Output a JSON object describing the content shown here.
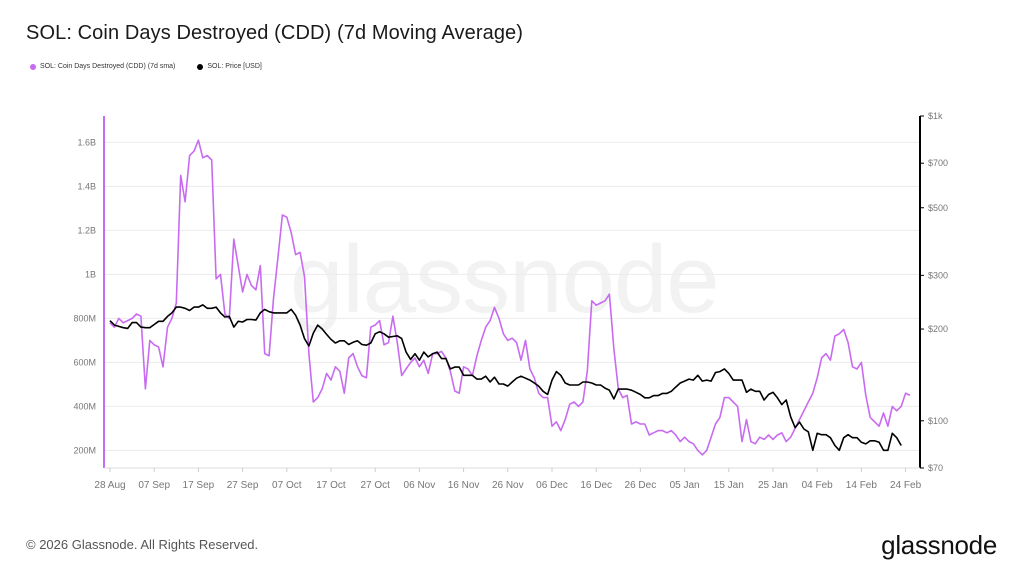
{
  "header": {
    "title": "SOL: Coin Days Destroyed (CDD) (7d Moving Average)"
  },
  "footer": {
    "copyright": "© 2026 Glassnode. All Rights Reserved.",
    "brand": "glassnode",
    "watermark": "glassnode"
  },
  "colors": {
    "cdd": "#c86bf0",
    "price": "#000000",
    "grid": "#ececec",
    "axis_text": "#777777"
  },
  "chart_data": {
    "type": "line",
    "x_tick_labels": [
      "28 Aug",
      "07 Sep",
      "17 Sep",
      "27 Sep",
      "07 Oct",
      "17 Oct",
      "27 Oct",
      "06 Nov",
      "16 Nov",
      "26 Nov",
      "06 Dec",
      "16 Dec",
      "26 Dec",
      "05 Jan",
      "15 Jan",
      "25 Jan",
      "04 Feb",
      "14 Feb",
      "24 Feb"
    ],
    "y_left": {
      "ticks": [
        200,
        400,
        600,
        800,
        1000,
        1200,
        1400,
        1600
      ],
      "tick_labels": [
        "200M",
        "400M",
        "600M",
        "800M",
        "1B",
        "1.2B",
        "1.4B",
        "1.6B"
      ],
      "range": [
        120,
        1720
      ]
    },
    "y_right": {
      "scale": "log",
      "ticks": [
        70,
        100,
        200,
        300,
        500,
        700,
        1000
      ],
      "tick_labels": [
        "$70",
        "$100",
        "$200",
        "$300",
        "$500",
        "$700",
        "$1k"
      ],
      "range": [
        70,
        1000
      ]
    },
    "legend": [
      {
        "name": "SOL: Coin Days Destroyed (CDD) (7d sma)",
        "color": "#c86bf0"
      },
      {
        "name": "SOL: Price [USD]",
        "color": "#000000"
      }
    ],
    "series": [
      {
        "name": "SOL: Coin Days Destroyed (CDD) (7d sma)",
        "axis": "left",
        "x_step_days": 1,
        "values": [
          780,
          760,
          800,
          780,
          790,
          800,
          820,
          810,
          480,
          700,
          680,
          670,
          580,
          760,
          800,
          870,
          1450,
          1330,
          1540,
          1560,
          1610,
          1530,
          1540,
          1520,
          980,
          1000,
          820,
          800,
          1160,
          1040,
          920,
          1000,
          950,
          930,
          1040,
          640,
          630,
          890,
          1080,
          1270,
          1260,
          1190,
          1090,
          1100,
          990,
          640,
          420,
          440,
          480,
          550,
          520,
          580,
          560,
          460,
          620,
          640,
          580,
          540,
          530,
          760,
          770,
          790,
          680,
          690,
          810,
          690,
          540,
          570,
          600,
          620,
          580,
          610,
          550,
          640,
          640,
          650,
          620,
          560,
          470,
          460,
          580,
          570,
          540,
          630,
          700,
          760,
          790,
          850,
          800,
          730,
          700,
          710,
          690,
          610,
          700,
          570,
          530,
          460,
          440,
          440,
          310,
          330,
          290,
          340,
          410,
          420,
          400,
          420,
          560,
          880,
          860,
          870,
          880,
          910,
          660,
          480,
          440,
          450,
          320,
          330,
          320,
          320,
          270,
          280,
          290,
          290,
          280,
          290,
          270,
          240,
          260,
          240,
          230,
          200,
          180,
          200,
          260,
          320,
          350,
          440,
          440,
          420,
          400,
          240,
          340,
          240,
          230,
          260,
          250,
          270,
          250,
          270,
          280,
          240,
          260,
          300,
          340,
          380,
          420,
          460,
          530,
          620,
          640,
          610,
          720,
          730,
          750,
          690,
          580,
          570,
          600,
          450,
          350,
          330,
          310,
          370,
          310,
          400,
          380,
          400,
          460,
          450
        ]
      },
      {
        "name": "SOL: Price [USD]",
        "axis": "right",
        "x_step_days": 1,
        "values": [
          213,
          206,
          204,
          202,
          201,
          210,
          210,
          203,
          202,
          202,
          207,
          212,
          212,
          220,
          226,
          236,
          236,
          234,
          230,
          236,
          236,
          240,
          234,
          234,
          236,
          226,
          219,
          220,
          203,
          212,
          211,
          215,
          215,
          214,
          226,
          232,
          228,
          226,
          226,
          226,
          226,
          232,
          222,
          206,
          186,
          176,
          194,
          206,
          200,
          192,
          185,
          180,
          183,
          183,
          178,
          181,
          183,
          178,
          177,
          180,
          193,
          196,
          193,
          188,
          189,
          190,
          186,
          168,
          159,
          166,
          158,
          168,
          162,
          166,
          168,
          160,
          160,
          148,
          150,
          150,
          141,
          141,
          141,
          137,
          137,
          140,
          134,
          139,
          132,
          132,
          130,
          134,
          138,
          140,
          138,
          136,
          133,
          130,
          125,
          122,
          136,
          145,
          141,
          133,
          131,
          131,
          131,
          134,
          134,
          133,
          131,
          131,
          128,
          126,
          118,
          127,
          127,
          127,
          126,
          124,
          122,
          119,
          119,
          121,
          121,
          123,
          123,
          125,
          129,
          133,
          135,
          137,
          136,
          141,
          135,
          136,
          135,
          144,
          145,
          148,
          143,
          136,
          136,
          136,
          124,
          127,
          125,
          125,
          117,
          122,
          124,
          119,
          113,
          117,
          103,
          95,
          99,
          94,
          92,
          80,
          91,
          90,
          90,
          88,
          83,
          80,
          88,
          90,
          88,
          88,
          85,
          84,
          86,
          86,
          85,
          80,
          80,
          91,
          88,
          83
        ]
      }
    ]
  }
}
